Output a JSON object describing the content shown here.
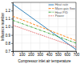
{
  "chart_data": {
    "type": "line",
    "xlabel": "Compressor inlet air temperature",
    "ylabel": "Influence number",
    "x": [
      0,
      700
    ],
    "series": [
      {
        "name": "Heat rate",
        "values": [
          1.28,
          0.72
        ],
        "line_style": "solid"
      },
      {
        "name": "Mass gas flow",
        "values": [
          1.13,
          0.83
        ],
        "line_style": "dashed"
      },
      {
        "name": "Heat P/D",
        "values": [
          1.08,
          0.8
        ],
        "line_style": "dashdot"
      },
      {
        "name": "Power",
        "values": [
          1.02,
          0.75
        ],
        "line_style": "dotted"
      }
    ],
    "xlim": [
      0,
      700
    ],
    "ylim": [
      0.7,
      1.3
    ],
    "xticks": [
      0,
      100,
      200,
      300,
      400,
      500,
      600,
      700
    ],
    "yticks": [
      0.7,
      0.8,
      0.9,
      {
        "value": 1.0,
        "label": "1.0"
      },
      1.1,
      1.2
    ],
    "grid": true,
    "legend": "upper right"
  }
}
